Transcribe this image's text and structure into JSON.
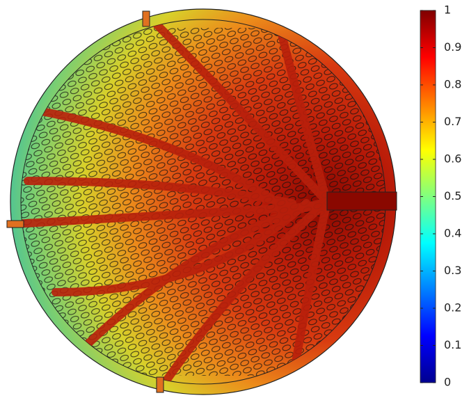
{
  "chart_data": {
    "type": "surface",
    "colorbar": {
      "lim": [
        0,
        1
      ],
      "ticks": [
        0,
        0.1,
        0.2,
        0.3,
        0.4,
        0.5,
        0.6,
        0.7,
        0.8,
        0.9,
        1
      ],
      "colormap": [
        "#00008f",
        "#0000ff",
        "#0080ff",
        "#00ffff",
        "#80ff80",
        "#ffff00",
        "#ff8000",
        "#ff0000",
        "#800000"
      ]
    }
  }
}
